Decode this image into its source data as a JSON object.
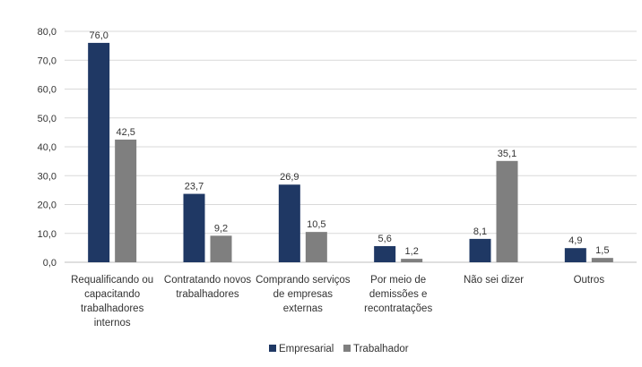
{
  "chart_data": {
    "type": "bar",
    "categories": [
      [
        "Requalificando ou",
        "capacitando",
        "trabalhadores",
        "internos"
      ],
      [
        "Contratando novos",
        "trabalhadores"
      ],
      [
        "Comprando serviços",
        "de empresas",
        "externas"
      ],
      [
        "Por meio de",
        "demissões e",
        "recontratações"
      ],
      [
        "Não sei dizer"
      ],
      [
        "Outros"
      ]
    ],
    "series": [
      {
        "name": "Empresarial",
        "color": "#1F3864",
        "values": [
          76.0,
          23.7,
          26.9,
          5.6,
          8.1,
          4.9
        ],
        "labels": [
          "76,0",
          "23,7",
          "26,9",
          "5,6",
          "8,1",
          "4,9"
        ]
      },
      {
        "name": "Trabalhador",
        "color": "#7F7F7F",
        "values": [
          42.5,
          9.2,
          10.5,
          1.2,
          35.1,
          1.5
        ],
        "labels": [
          "42,5",
          "9,2",
          "10,5",
          "1,2",
          "35,1",
          "1,5"
        ]
      }
    ],
    "ylim": [
      0,
      80
    ],
    "yticks": [
      0,
      10,
      20,
      30,
      40,
      50,
      60,
      70,
      80
    ],
    "ytick_labels": [
      "0,0",
      "10,0",
      "20,0",
      "30,0",
      "40,0",
      "50,0",
      "60,0",
      "70,0",
      "80,0"
    ],
    "grid": true,
    "legend": "bottom-center",
    "title": "",
    "xlabel": "",
    "ylabel": ""
  }
}
